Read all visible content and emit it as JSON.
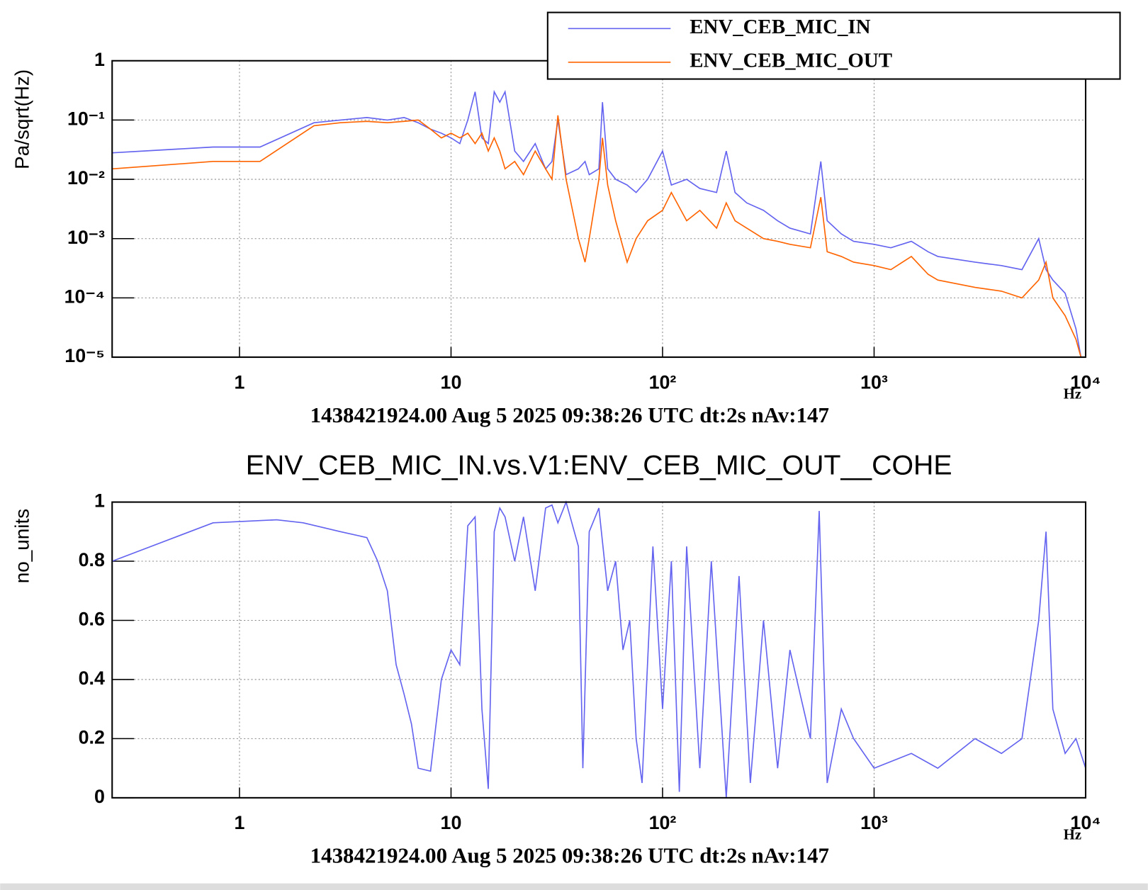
{
  "chart_data": [
    {
      "type": "line",
      "xlabel": "1438421924.00 Aug 5 2025 09:38:26 UTC dt:2s nAv:147",
      "x_unit": "Hz",
      "ylabel": "Pa/sqrt(Hz)",
      "xlog": true,
      "ylog": true,
      "grid": true,
      "legend": "top-right",
      "xlim": [
        0.25,
        10000
      ],
      "xticks": [
        1,
        10,
        {
          "value": 100,
          "label": "10²"
        },
        {
          "value": 1000,
          "label": "10³"
        },
        {
          "value": 10000,
          "label": "10⁴"
        }
      ],
      "ylim": [
        1e-05,
        1
      ],
      "yticks": [
        {
          "value": 1e-05,
          "label": "10⁻⁵"
        },
        {
          "value": 0.0001,
          "label": "10⁻⁴"
        },
        {
          "value": 0.001,
          "label": "10⁻³"
        },
        {
          "value": 0.01,
          "label": "10⁻²"
        },
        {
          "value": 0.1,
          "label": "10⁻¹"
        },
        1
      ],
      "x": [
        0.25,
        0.75,
        1.25,
        2.25,
        3,
        4,
        5,
        6,
        7,
        8,
        9,
        10,
        11,
        12,
        13,
        14,
        15,
        16,
        17,
        18,
        20,
        22,
        25,
        28,
        30,
        32,
        35,
        40,
        43,
        45,
        50,
        52,
        55,
        60,
        68,
        75,
        85,
        100,
        110,
        130,
        150,
        180,
        200,
        220,
        250,
        300,
        350,
        400,
        500,
        560,
        600,
        700,
        800,
        1000,
        1200,
        1500,
        1800,
        2000,
        3000,
        4000,
        5000,
        6000,
        6500,
        7000,
        8000,
        9000,
        9500
      ],
      "series": [
        {
          "name": "ENV_CEB_MIC_IN",
          "color": "#6464f0",
          "values": [
            0.028,
            0.035,
            0.035,
            0.09,
            0.1,
            0.11,
            0.1,
            0.11,
            0.09,
            0.07,
            0.06,
            0.05,
            0.04,
            0.1,
            0.3,
            0.05,
            0.04,
            0.3,
            0.2,
            0.3,
            0.03,
            0.02,
            0.04,
            0.015,
            0.02,
            0.1,
            0.012,
            0.015,
            0.02,
            0.012,
            0.015,
            0.2,
            0.015,
            0.01,
            0.008,
            0.006,
            0.01,
            0.03,
            0.008,
            0.01,
            0.007,
            0.006,
            0.03,
            0.006,
            0.004,
            0.003,
            0.002,
            0.0015,
            0.0012,
            0.02,
            0.002,
            0.0012,
            0.0009,
            0.0008,
            0.0007,
            0.0009,
            0.0006,
            0.0005,
            0.0004,
            0.00035,
            0.0003,
            0.001,
            0.0003,
            0.0002,
            0.00012,
            3e-05,
            1e-05
          ]
        },
        {
          "name": "ENV_CEB_MIC_OUT",
          "color": "#ff6400",
          "values": [
            0.015,
            0.02,
            0.02,
            0.08,
            0.09,
            0.095,
            0.09,
            0.095,
            0.1,
            0.07,
            0.05,
            0.06,
            0.05,
            0.06,
            0.04,
            0.06,
            0.03,
            0.05,
            0.03,
            0.015,
            0.02,
            0.012,
            0.03,
            0.015,
            0.01,
            0.12,
            0.01,
            0.001,
            0.0004,
            0.001,
            0.01,
            0.05,
            0.008,
            0.002,
            0.0004,
            0.001,
            0.002,
            0.003,
            0.006,
            0.002,
            0.003,
            0.0015,
            0.004,
            0.002,
            0.0015,
            0.001,
            0.0009,
            0.0008,
            0.0007,
            0.005,
            0.0006,
            0.0005,
            0.0004,
            0.00035,
            0.0003,
            0.0005,
            0.00025,
            0.0002,
            0.00015,
            0.00013,
            0.0001,
            0.0002,
            0.0004,
            0.0001,
            5e-05,
            2e-05,
            1e-05
          ]
        }
      ]
    },
    {
      "type": "line",
      "title": "ENV_CEB_MIC_IN.vs.V1:ENV_CEB_MIC_OUT__COHE",
      "xlabel": "1438421924.00 Aug 5 2025 09:38:26 UTC dt:2s nAv:147",
      "x_unit": "Hz",
      "ylabel": "no_units",
      "xlog": true,
      "ylog": false,
      "grid": true,
      "xlim": [
        0.25,
        10000
      ],
      "xticks": [
        1,
        10,
        {
          "value": 100,
          "label": "10²"
        },
        {
          "value": 1000,
          "label": "10³"
        },
        {
          "value": 10000,
          "label": "10⁴"
        }
      ],
      "ylim": [
        0,
        1
      ],
      "yticks": [
        0,
        0.2,
        0.4,
        0.6,
        0.8,
        1
      ],
      "x": [
        0.25,
        0.75,
        1.5,
        2,
        3,
        4,
        4.5,
        5,
        5.5,
        6,
        6.5,
        7,
        8,
        8.5,
        9,
        10,
        11,
        12,
        13,
        14,
        15,
        16,
        17,
        18,
        20,
        22,
        25,
        28,
        30,
        32,
        35,
        40,
        42,
        45,
        50,
        55,
        60,
        65,
        70,
        75,
        80,
        90,
        100,
        110,
        120,
        130,
        150,
        170,
        200,
        230,
        260,
        300,
        350,
        400,
        500,
        550,
        600,
        700,
        800,
        1000,
        1500,
        2000,
        3000,
        4000,
        5000,
        6000,
        6500,
        7000,
        8000,
        9000,
        10000
      ],
      "series": [
        {
          "color": "#6464f0",
          "values": [
            0.8,
            0.93,
            0.94,
            0.93,
            0.9,
            0.88,
            0.8,
            0.7,
            0.45,
            0.35,
            0.25,
            0.1,
            0.09,
            0.25,
            0.4,
            0.5,
            0.45,
            0.92,
            0.95,
            0.3,
            0.03,
            0.9,
            0.98,
            0.95,
            0.8,
            0.95,
            0.7,
            0.98,
            0.99,
            0.93,
            1,
            0.85,
            0.1,
            0.9,
            0.98,
            0.7,
            0.8,
            0.5,
            0.6,
            0.2,
            0.05,
            0.85,
            0.3,
            0.8,
            0.02,
            0.85,
            0.1,
            0.8,
            0.0,
            0.75,
            0.05,
            0.6,
            0.1,
            0.5,
            0.2,
            0.97,
            0.05,
            0.3,
            0.2,
            0.1,
            0.15,
            0.1,
            0.2,
            0.15,
            0.2,
            0.6,
            0.9,
            0.3,
            0.15,
            0.2,
            0.1
          ]
        }
      ]
    }
  ]
}
